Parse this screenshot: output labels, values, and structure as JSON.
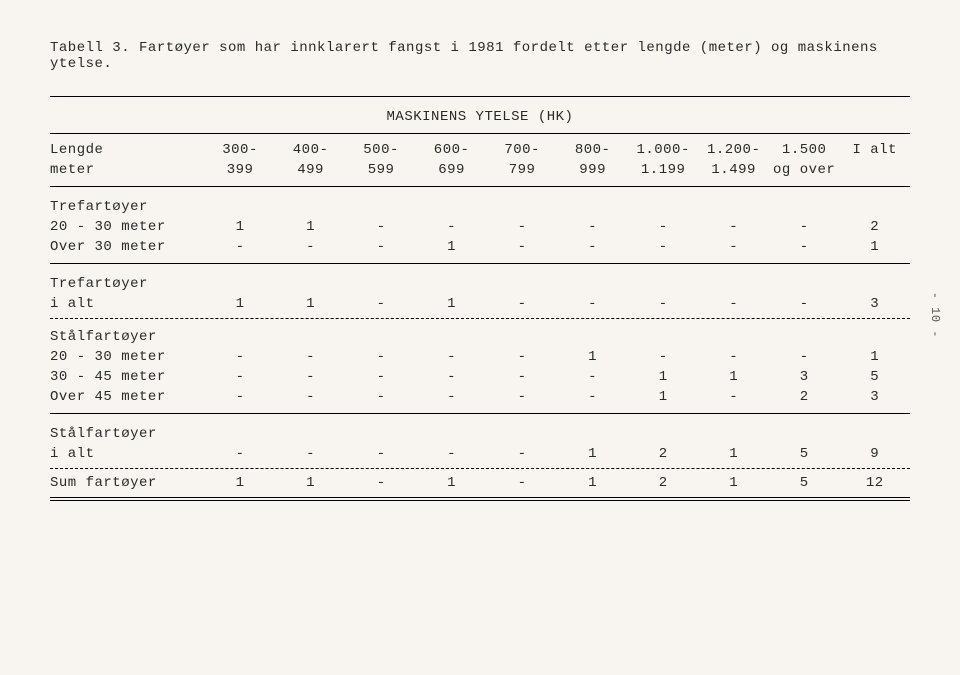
{
  "title": "Tabell 3. Fartøyer som har innklarert fangst i 1981 fordelt etter lengde (meter) og maskinens ytelse.",
  "super_header": "MASKINENS YTELSE (HK)",
  "header_row1": [
    "Lengde",
    "300-",
    "400-",
    "500-",
    "600-",
    "700-",
    "800-",
    "1.000-",
    "1.200-",
    "1.500",
    "I alt"
  ],
  "header_row2": [
    "meter",
    "399",
    "499",
    "599",
    "699",
    "799",
    "999",
    "1.199",
    "1.499",
    "og over",
    ""
  ],
  "sections": [
    {
      "label": "Trefartøyer",
      "rows": [
        {
          "label": "20 - 30 meter",
          "cells": [
            "1",
            "1",
            "-",
            "-",
            "-",
            "-",
            "-",
            "-",
            "-",
            "2"
          ]
        },
        {
          "label": "Over 30 meter",
          "cells": [
            "-",
            "-",
            "-",
            "1",
            "-",
            "-",
            "-",
            "-",
            "-",
            "1"
          ]
        }
      ],
      "end_rule": "solid"
    },
    {
      "label": "Trefartøyer",
      "rows": [
        {
          "label": "i alt",
          "cells": [
            "1",
            "1",
            "-",
            "1",
            "-",
            "-",
            "-",
            "-",
            "-",
            "3"
          ]
        }
      ],
      "end_rule": "dash"
    },
    {
      "label": "Stålfartøyer",
      "rows": [
        {
          "label": "20 - 30 meter",
          "cells": [
            "-",
            "-",
            "-",
            "-",
            "-",
            "1",
            "-",
            "-",
            "-",
            "1"
          ]
        },
        {
          "label": "30 - 45 meter",
          "cells": [
            "-",
            "-",
            "-",
            "-",
            "-",
            "-",
            "1",
            "1",
            "3",
            "5"
          ]
        },
        {
          "label": "Over 45 meter",
          "cells": [
            "-",
            "-",
            "-",
            "-",
            "-",
            "-",
            "1",
            "-",
            "2",
            "3"
          ]
        }
      ],
      "end_rule": "solid"
    },
    {
      "label": "Stålfartøyer",
      "rows": [
        {
          "label": "i alt",
          "cells": [
            "-",
            "-",
            "-",
            "-",
            "-",
            "1",
            "2",
            "1",
            "5",
            "9"
          ]
        }
      ],
      "end_rule": "dash"
    }
  ],
  "sum_row": {
    "label": "Sum fartøyer",
    "cells": [
      "1",
      "1",
      "-",
      "1",
      "-",
      "1",
      "2",
      "1",
      "5",
      "12"
    ]
  },
  "side_note": "- 10 -",
  "colors": {
    "background": "#f8f5f0",
    "text": "#2a2a2a",
    "rule": "#000000"
  }
}
